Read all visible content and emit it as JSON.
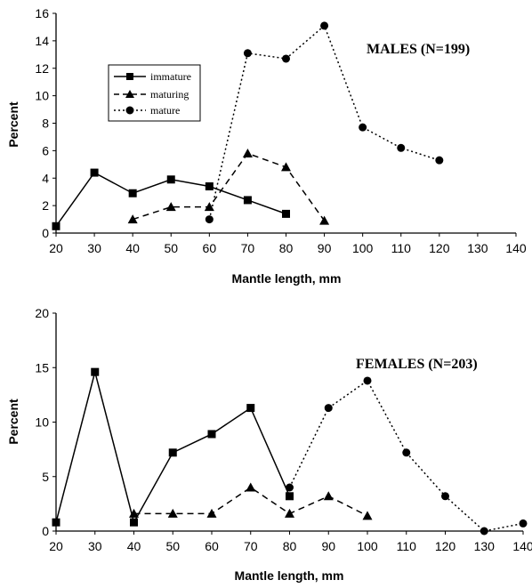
{
  "chart_data": [
    {
      "type": "line",
      "title": "MALES (N=199)",
      "xlabel": "Mantle length, mm",
      "ylabel": "Percent",
      "xlim": [
        20,
        140
      ],
      "ylim": [
        0,
        16
      ],
      "x_ticks": [
        20,
        30,
        40,
        50,
        60,
        70,
        80,
        90,
        100,
        110,
        120,
        130,
        140
      ],
      "y_ticks": [
        0,
        2,
        4,
        6,
        8,
        10,
        12,
        14,
        16
      ],
      "legend": "upper-left",
      "grid": false,
      "series": [
        {
          "name": "immature",
          "marker": "square",
          "line": "solid",
          "points": [
            [
              20,
              0.5
            ],
            [
              30,
              4.4
            ],
            [
              40,
              2.9
            ],
            [
              50,
              3.9
            ],
            [
              60,
              3.4
            ],
            [
              70,
              2.4
            ],
            [
              80,
              1.4
            ]
          ]
        },
        {
          "name": "maturing",
          "marker": "triangle",
          "line": "dashed",
          "points": [
            [
              40,
              1.0
            ],
            [
              50,
              1.9
            ],
            [
              60,
              1.9
            ],
            [
              70,
              5.8
            ],
            [
              80,
              4.8
            ],
            [
              90,
              0.9
            ]
          ]
        },
        {
          "name": "mature",
          "marker": "circle",
          "line": "dotted",
          "points": [
            [
              60,
              1.0
            ],
            [
              70,
              13.1
            ],
            [
              80,
              12.7
            ],
            [
              90,
              15.1
            ],
            [
              100,
              7.7
            ],
            [
              110,
              6.2
            ],
            [
              120,
              5.3
            ]
          ]
        }
      ]
    },
    {
      "type": "line",
      "title": "FEMALES (N=203)",
      "xlabel": "Mantle length, mm",
      "ylabel": "Percent",
      "xlim": [
        20,
        140
      ],
      "ylim": [
        0,
        20
      ],
      "x_ticks": [
        20,
        30,
        40,
        50,
        60,
        70,
        80,
        90,
        100,
        110,
        120,
        130,
        140
      ],
      "y_ticks": [
        0,
        5,
        10,
        15,
        20
      ],
      "grid": false,
      "series": [
        {
          "marker": "square",
          "line": "solid",
          "points": [
            [
              20,
              0.8
            ],
            [
              30,
              14.6
            ],
            [
              40,
              0.8
            ],
            [
              50,
              7.2
            ],
            [
              60,
              8.9
            ],
            [
              70,
              11.3
            ],
            [
              80,
              3.2
            ]
          ]
        },
        {
          "marker": "triangle",
          "line": "dashed",
          "points": [
            [
              40,
              1.6
            ],
            [
              50,
              1.6
            ],
            [
              60,
              1.6
            ],
            [
              70,
              4.0
            ],
            [
              80,
              1.6
            ],
            [
              90,
              3.2
            ],
            [
              100,
              1.4
            ]
          ]
        },
        {
          "marker": "circle",
          "line": "dotted",
          "points": [
            [
              80,
              4.0
            ],
            [
              90,
              11.3
            ],
            [
              100,
              13.8
            ],
            [
              110,
              7.2
            ],
            [
              120,
              3.2
            ],
            [
              130,
              0.0
            ],
            [
              140,
              0.7
            ]
          ]
        }
      ]
    }
  ]
}
